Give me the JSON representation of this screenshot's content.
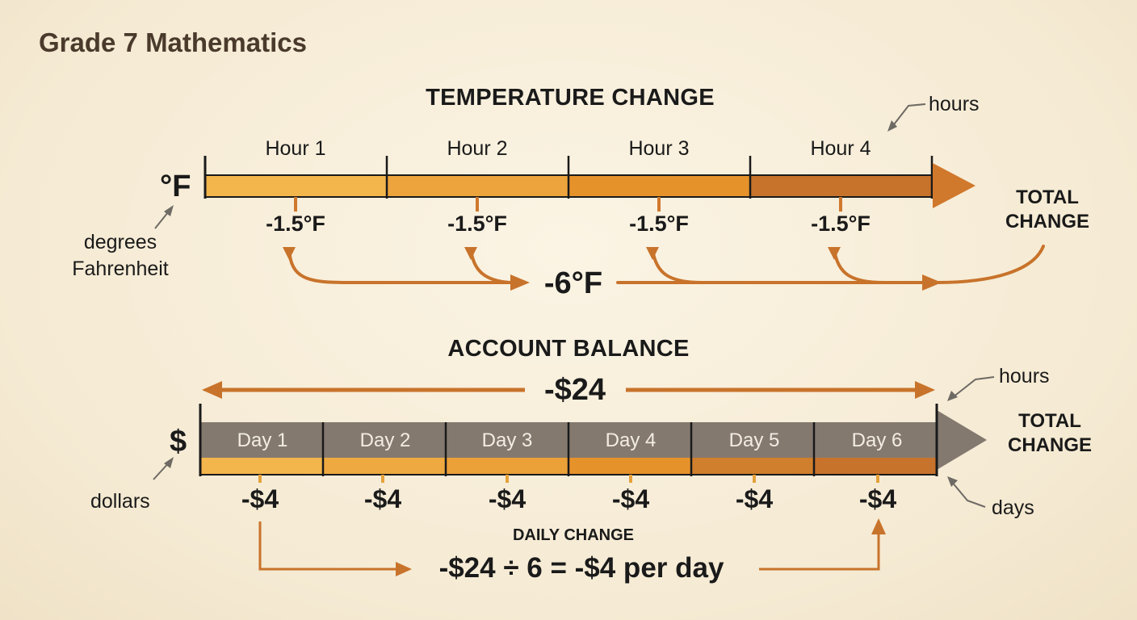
{
  "title": "Grade 7 Mathematics",
  "temperature": {
    "heading": "TEMPERATURE CHANGE",
    "unit_symbol": "°F",
    "unit_note_line1": "degrees",
    "unit_note_line2": "Fahrenheit",
    "axis_note": "hours",
    "segments": [
      {
        "label": "Hour 1",
        "change": "-1.5°F"
      },
      {
        "label": "Hour 2",
        "change": "-1.5°F"
      },
      {
        "label": "Hour 3",
        "change": "-1.5°F"
      },
      {
        "label": "Hour 4",
        "change": "-1.5°F"
      }
    ],
    "total_value": "-6°F",
    "total_label_line1": "TOTAL",
    "total_label_line2": "CHANGE",
    "colors": [
      "#f3b64c",
      "#eda43c",
      "#e6922b",
      "#c8732b"
    ]
  },
  "account": {
    "heading": "ACCOUNT BALANCE",
    "unit_symbol": "$",
    "unit_note": "dollars",
    "total_value": "-$24",
    "axis_note_top": "hours",
    "axis_note_bottom": "days",
    "total_label_line1": "TOTAL",
    "total_label_line2": "CHANGE",
    "segments": [
      {
        "label": "Day 1",
        "change": "-$4"
      },
      {
        "label": "Day 2",
        "change": "-$4"
      },
      {
        "label": "Day 3",
        "change": "-$4"
      },
      {
        "label": "Day 4",
        "change": "-$4"
      },
      {
        "label": "Day 5",
        "change": "-$4"
      },
      {
        "label": "Day 6",
        "change": "-$4"
      }
    ],
    "daily_change_label": "DAILY CHANGE",
    "equation": "-$24 ÷ 6 = -$4 per day",
    "colors": [
      "#f3b64c",
      "#eeaa40",
      "#eba038",
      "#e6922b",
      "#d07f2c",
      "#c8732b"
    ]
  }
}
